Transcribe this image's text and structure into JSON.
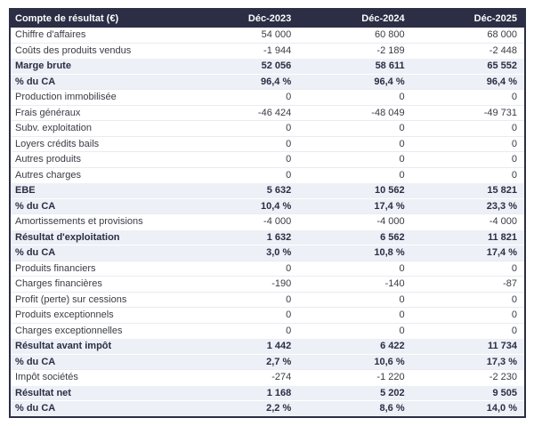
{
  "table": {
    "header": {
      "label": "Compte de résultat (€)",
      "columns": [
        "Déc-2023",
        "Déc-2024",
        "Déc-2025"
      ]
    },
    "colors": {
      "header_bg": "#2b2e44",
      "header_text": "#ffffff",
      "highlight_row_bg": "#edf0f6",
      "highlight_text": "#2b2e44",
      "body_text": "#3a3b45",
      "outer_border": "#2b2e44"
    },
    "rows": [
      {
        "label": "Chiffre d'affaires",
        "highlight": false,
        "values": [
          "54 000",
          "60 800",
          "68 000"
        ]
      },
      {
        "label": "Coûts des produits vendus",
        "highlight": false,
        "values": [
          "-1 944",
          "-2 189",
          "-2 448"
        ]
      },
      {
        "label": "Marge brute",
        "highlight": true,
        "values": [
          "52 056",
          "58 611",
          "65 552"
        ]
      },
      {
        "label": "% du CA",
        "highlight": true,
        "values": [
          "96,4 %",
          "96,4 %",
          "96,4 %"
        ]
      },
      {
        "label": "Production immobilisée",
        "highlight": false,
        "values": [
          "0",
          "0",
          "0"
        ]
      },
      {
        "label": "Frais généraux",
        "highlight": false,
        "values": [
          "-46 424",
          "-48 049",
          "-49 731"
        ]
      },
      {
        "label": "Subv. exploitation",
        "highlight": false,
        "values": [
          "0",
          "0",
          "0"
        ]
      },
      {
        "label": "Loyers crédits bails",
        "highlight": false,
        "values": [
          "0",
          "0",
          "0"
        ]
      },
      {
        "label": "Autres produits",
        "highlight": false,
        "values": [
          "0",
          "0",
          "0"
        ]
      },
      {
        "label": "Autres charges",
        "highlight": false,
        "values": [
          "0",
          "0",
          "0"
        ]
      },
      {
        "label": "EBE",
        "highlight": true,
        "values": [
          "5 632",
          "10 562",
          "15 821"
        ]
      },
      {
        "label": "% du CA",
        "highlight": true,
        "values": [
          "10,4 %",
          "17,4 %",
          "23,3 %"
        ]
      },
      {
        "label": "Amortissements et provisions",
        "highlight": false,
        "values": [
          "-4 000",
          "-4 000",
          "-4 000"
        ]
      },
      {
        "label": "Résultat d'exploitation",
        "highlight": true,
        "values": [
          "1 632",
          "6 562",
          "11 821"
        ]
      },
      {
        "label": "% du CA",
        "highlight": true,
        "values": [
          "3,0 %",
          "10,8 %",
          "17,4 %"
        ]
      },
      {
        "label": "Produits financiers",
        "highlight": false,
        "values": [
          "0",
          "0",
          "0"
        ]
      },
      {
        "label": "Charges financières",
        "highlight": false,
        "values": [
          "-190",
          "-140",
          "-87"
        ]
      },
      {
        "label": "Profit (perte) sur cessions",
        "highlight": false,
        "values": [
          "0",
          "0",
          "0"
        ]
      },
      {
        "label": "Produits exceptionnels",
        "highlight": false,
        "values": [
          "0",
          "0",
          "0"
        ]
      },
      {
        "label": "Charges exceptionnelles",
        "highlight": false,
        "values": [
          "0",
          "0",
          "0"
        ]
      },
      {
        "label": "Résultat avant impôt",
        "highlight": true,
        "values": [
          "1 442",
          "6 422",
          "11 734"
        ]
      },
      {
        "label": "% du CA",
        "highlight": true,
        "values": [
          "2,7 %",
          "10,6 %",
          "17,3 %"
        ]
      },
      {
        "label": "Impôt sociétés",
        "highlight": false,
        "values": [
          "-274",
          "-1 220",
          "-2 230"
        ]
      },
      {
        "label": "Résultat net",
        "highlight": true,
        "values": [
          "1 168",
          "5 202",
          "9 505"
        ]
      },
      {
        "label": "% du CA",
        "highlight": true,
        "values": [
          "2,2 %",
          "8,6 %",
          "14,0 %"
        ]
      }
    ]
  }
}
